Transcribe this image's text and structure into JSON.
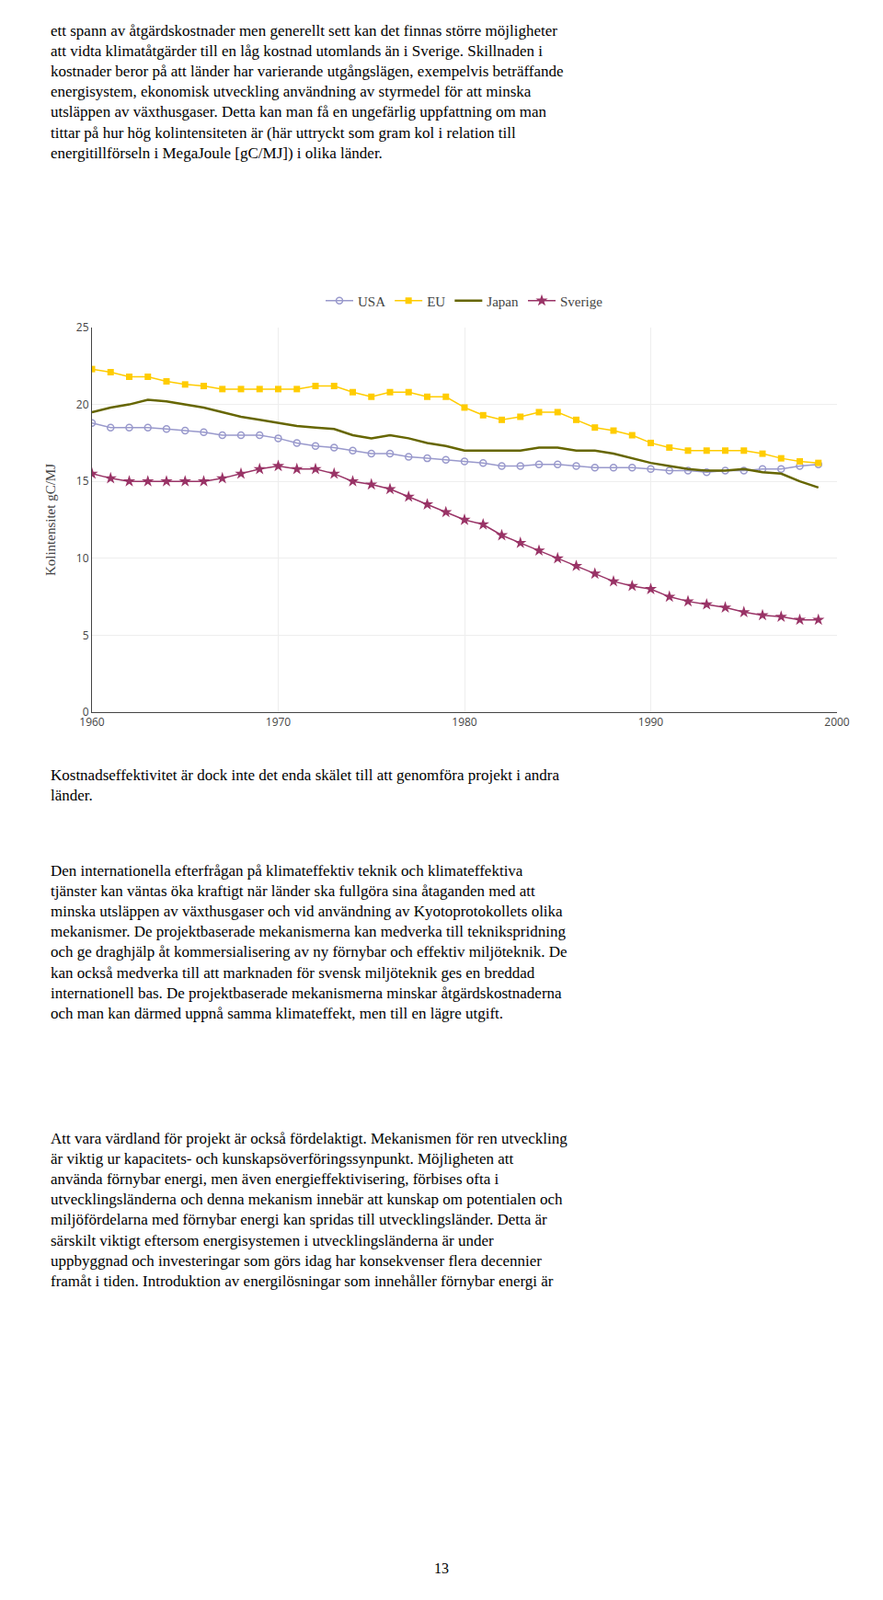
{
  "chart_data": {
    "type": "line",
    "ylabel": "Kolintensitet gC/MJ",
    "x": [
      1960,
      1961,
      1962,
      1963,
      1964,
      1965,
      1966,
      1967,
      1968,
      1969,
      1970,
      1971,
      1972,
      1973,
      1974,
      1975,
      1976,
      1977,
      1978,
      1979,
      1980,
      1981,
      1982,
      1983,
      1984,
      1985,
      1986,
      1987,
      1988,
      1989,
      1990,
      1991,
      1992,
      1993,
      1994,
      1995,
      1996,
      1997,
      1998,
      1999
    ],
    "series": [
      {
        "name": "USA",
        "color": "#9999cc",
        "marker": "circle-open",
        "line_style": "solid",
        "values": [
          18.8,
          18.5,
          18.5,
          18.5,
          18.4,
          18.3,
          18.2,
          18.0,
          18.0,
          18.0,
          17.8,
          17.5,
          17.3,
          17.2,
          17.0,
          16.8,
          16.8,
          16.6,
          16.5,
          16.4,
          16.3,
          16.2,
          16.0,
          16.0,
          16.1,
          16.1,
          16.0,
          15.9,
          15.9,
          15.9,
          15.8,
          15.7,
          15.7,
          15.6,
          15.7,
          15.7,
          15.8,
          15.8,
          16.0,
          16.1
        ]
      },
      {
        "name": "EU",
        "color": "#ffcc00",
        "marker": "square",
        "line_style": "solid",
        "values": [
          22.3,
          22.1,
          21.8,
          21.8,
          21.5,
          21.3,
          21.2,
          21.0,
          21.0,
          21.0,
          21.0,
          21.0,
          21.2,
          21.2,
          20.8,
          20.5,
          20.8,
          20.8,
          20.5,
          20.5,
          19.8,
          19.3,
          19.0,
          19.2,
          19.5,
          19.5,
          19.0,
          18.5,
          18.3,
          18.0,
          17.5,
          17.2,
          17.0,
          17.0,
          17.0,
          17.0,
          16.8,
          16.5,
          16.3,
          16.2
        ]
      },
      {
        "name": "Japan",
        "color": "#666600",
        "marker": "none",
        "line_style": "solid",
        "values": [
          19.5,
          19.8,
          20.0,
          20.3,
          20.2,
          20.0,
          19.8,
          19.5,
          19.2,
          19.0,
          18.8,
          18.6,
          18.5,
          18.4,
          18.0,
          17.8,
          18.0,
          17.8,
          17.5,
          17.3,
          17.0,
          17.0,
          17.0,
          17.0,
          17.2,
          17.2,
          17.0,
          17.0,
          16.8,
          16.5,
          16.2,
          16.0,
          15.8,
          15.7,
          15.7,
          15.8,
          15.6,
          15.5,
          15.0,
          14.6
        ]
      },
      {
        "name": "Sverige",
        "color": "#993366",
        "marker": "star",
        "line_style": "solid",
        "values": [
          15.5,
          15.2,
          15.0,
          15.0,
          15.0,
          15.0,
          15.0,
          15.2,
          15.5,
          15.8,
          16.0,
          15.8,
          15.8,
          15.5,
          15.0,
          14.8,
          14.5,
          14.0,
          13.5,
          13.0,
          12.5,
          12.2,
          11.5,
          11.0,
          10.5,
          10.0,
          9.5,
          9.0,
          8.5,
          8.2,
          8.0,
          7.5,
          7.2,
          7.0,
          6.8,
          6.5,
          6.3,
          6.2,
          6.0,
          6.0
        ]
      }
    ],
    "xlim": [
      1960,
      2000
    ],
    "xticks": [
      1960,
      1970,
      1980,
      1990,
      2000
    ],
    "ylim": [
      0,
      25
    ],
    "yticks": [
      0,
      5,
      10,
      15,
      20,
      25
    ],
    "grid": true,
    "legend": "top",
    "annotations": [
      "ett spann av åtgärdskostnader men generellt sett kan det finnas större möjligheter\natt vidta klimatåtgärder till en låg kostnad utomlands än i Sverige. Skillnaden i\nkostnader beror på att länder har varierande utgångslägen, exempelvis beträffande\nenergisystem, ekonomisk utveckling användning av styrmedel för att minska\nutsläppen av växthusgaser. Detta kan man få en ungefärlig uppfattning om man\ntittar på hur hög kolintensiteten är (här uttryckt som gram kol i relation till\nenergitillförseln i MegaJoule [gC/MJ]) i olika länder.",
      "Kostnadseffektivitet är dock inte det enda skälet till att genomföra projekt i andra\nländer.",
      "Den internationella efterfrågan på klimateffektiv teknik och klimateffektiva\ntjänster kan väntas öka kraftigt när länder ska fullgöra sina åtaganden med att\nminska utsläppen av växthusgaser och vid användning av Kyotoprotokollets olika\nmekanismer. De projektbaserade mekanismerna kan medverka till teknikspridning\noch ge draghjälp åt kommersialisering av ny förnybar och effektiv miljöteknik. De\nkan också medverka till att marknaden för svensk miljöteknik ges en breddad\ninternationell bas. De projektbaserade mekanismerna minskar åtgärdskostnaderna\noch man kan därmed uppnå samma klimateffekt, men till en lägre utgift.",
      "Att vara värdland för projekt är också fördelaktigt. Mekanismen för ren utveckling\när viktig ur kapacitets- och kunskapsöverföringssynpunkt. Möjligheten att\nanvända förnybar energi, men även energieffektivisering, förbises ofta i\nutvecklingsländerna och denna mekanism innebär att kunskap om potentialen och\nmiljöfördelarna med förnybar energi kan spridas till utvecklingsländer. Detta är\nsärskilt viktigt eftersom energisystemen i utvecklingsländerna är under\nuppbyggnad och investeringar som görs idag har konsekvenser flera decennier\nframåt i tiden. Introduktion av energilösningar som innehåller förnybar energi är",
      "13"
    ]
  }
}
